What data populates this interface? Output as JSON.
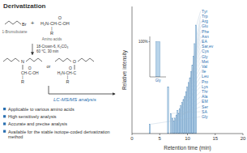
{
  "chart_data": [
    {
      "type": "bar",
      "title": "Derivatization",
      "xlabel": "Retention time (min)",
      "ylabel": "Relative intensity",
      "x": [
        3.2,
        6.5,
        7.0,
        7.3,
        7.55,
        7.75,
        8.0,
        8.22,
        8.42,
        8.62,
        8.82,
        9.05,
        9.28,
        9.52,
        9.75,
        9.98,
        10.22,
        10.45,
        10.68,
        10.88,
        11.08,
        11.3,
        11.55
      ],
      "values": [
        0.06,
        0.3,
        0.13,
        0.1,
        0.08,
        0.1,
        0.12,
        0.15,
        0.13,
        0.16,
        0.18,
        0.2,
        0.22,
        0.24,
        0.27,
        0.3,
        0.33,
        0.36,
        0.4,
        0.44,
        0.5,
        0.58,
        0.7
      ],
      "point_labels": [
        "Gly",
        null,
        "SA",
        "Ser",
        "EM",
        "Ala",
        "Thr",
        "Lys",
        "Pro",
        "Leu",
        "Ile",
        "Val",
        "Met",
        "Gly",
        "Cys",
        "Sar,ev",
        "EA",
        "Asn",
        "Phe",
        "Glu",
        "Arg",
        "Trp",
        "Tyr"
      ],
      "color": "#b8d4ea",
      "xlim": [
        0,
        20
      ],
      "xticks": [
        0,
        5,
        10,
        15,
        20
      ],
      "ylim": [
        0,
        0.82
      ],
      "tick_labels": "x",
      "annotations": [
        "Br",
        "1-Bromobutane",
        "+",
        "O",
        "H₂N-CH-C-OH",
        "|",
        "R",
        "Amino acids",
        "18-Crown-6, K₂CO₃",
        "60 °C, 30 min",
        "N",
        "CH-C-OH",
        "O",
        "|",
        "R",
        "or",
        "O",
        "O",
        "H₂N-CH-C",
        "|",
        "R",
        "LC-MS/MS analysis",
        "Applicable to various amino acids",
        "High sensitively analysis",
        "Accurate and precise analysis",
        "Available for the stable isotope-coded derivatization method"
      ]
    },
    {
      "type": "bar",
      "categories": [
        "Gly"
      ],
      "values": [
        1.0
      ],
      "color": "#b8d4ea",
      "ylim": [
        0,
        1.15
      ],
      "yticks": [
        {
          "value": 1.0,
          "label": "100%"
        }
      ]
    }
  ]
}
